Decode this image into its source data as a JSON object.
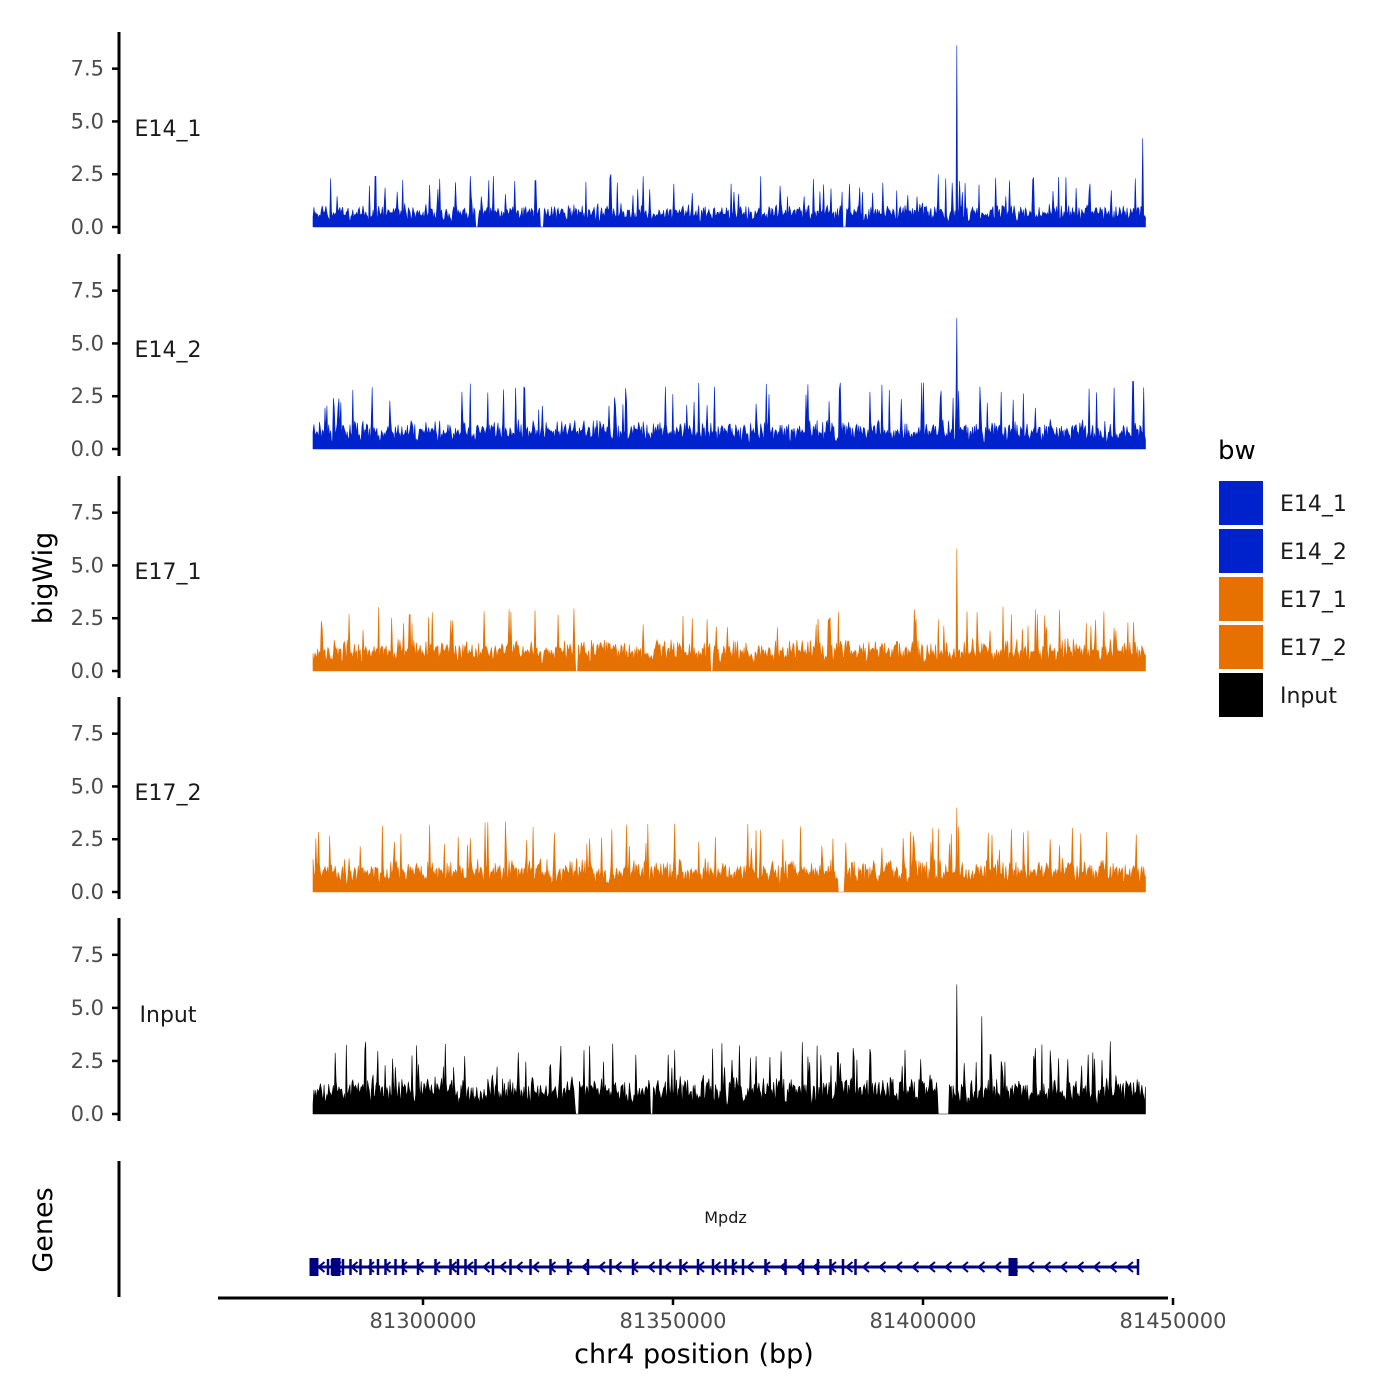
{
  "chart_data": {
    "type": "area",
    "xlabel": "chr4 position (bp)",
    "ylabel": "bigWig",
    "gene_panel_label": "Genes",
    "xlim": [
      81259000,
      81449000
    ],
    "data_xrange": [
      81278000,
      81444500
    ],
    "x_ticks": [
      81300000,
      81350000,
      81400000,
      81450000
    ],
    "x_tick_labels": [
      "81300000",
      "81350000",
      "81400000",
      "81450000"
    ],
    "ylim": [
      0,
      9
    ],
    "y_ticks": [
      0,
      2.5,
      5,
      7.5
    ],
    "y_tick_labels": [
      "0.0",
      "2.5",
      "5.0",
      "7.5"
    ],
    "legend": {
      "title": "bw",
      "entries": [
        {
          "label": "E14_1",
          "color": "#0022cc"
        },
        {
          "label": "E14_2",
          "color": "#0022cc"
        },
        {
          "label": "E17_1",
          "color": "#e67000"
        },
        {
          "label": "E17_2",
          "color": "#e67000"
        },
        {
          "label": "Input",
          "color": "#000000"
        }
      ]
    },
    "series": [
      {
        "name": "E14_1",
        "color": "#0022cc",
        "base": 0.55,
        "noise": 1.1,
        "seed": 11,
        "peaks": [
          [
            81406800,
            8.6
          ],
          [
            81444000,
            4.2
          ],
          [
            81281500,
            2.3
          ],
          [
            81290500,
            2.4
          ],
          [
            81322500,
            2.2
          ],
          [
            81337500,
            2.5
          ],
          [
            81403000,
            2.5
          ],
          [
            81442500,
            2.3
          ]
        ],
        "gaps": [
          [
            81323500,
            81324100
          ],
          [
            81310500,
            81311000
          ],
          [
            81384000,
            81384600
          ]
        ]
      },
      {
        "name": "E14_2",
        "color": "#0022cc",
        "base": 0.65,
        "noise": 1.5,
        "seed": 23,
        "peaks": [
          [
            81406800,
            6.2
          ],
          [
            81286000,
            2.8
          ],
          [
            81309500,
            3.1
          ],
          [
            81318500,
            2.9
          ],
          [
            81442000,
            3.2
          ],
          [
            81350000,
            2.6
          ],
          [
            81403500,
            2.4
          ]
        ],
        "gaps": []
      },
      {
        "name": "E17_1",
        "color": "#e67000",
        "base": 0.85,
        "noise": 1.3,
        "seed": 37,
        "peaks": [
          [
            81406800,
            5.8
          ],
          [
            81305500,
            2.4
          ],
          [
            81352000,
            2.6
          ],
          [
            81344000,
            2.2
          ],
          [
            81441000,
            2.3
          ]
        ],
        "gaps": [
          [
            81330500,
            81331000
          ],
          [
            81357500,
            81358000
          ]
        ]
      },
      {
        "name": "E17_2",
        "color": "#e67000",
        "base": 0.8,
        "noise": 1.5,
        "seed": 41,
        "peaks": [
          [
            81406800,
            4.0
          ],
          [
            81313000,
            3.3
          ],
          [
            81403000,
            3.0
          ],
          [
            81421000,
            2.9
          ],
          [
            81372000,
            2.5
          ]
        ],
        "gaps": [
          [
            81383000,
            81384200
          ]
        ]
      },
      {
        "name": "Input",
        "color": "#000000",
        "base": 1.05,
        "noise": 1.4,
        "seed": 53,
        "peaks": [
          [
            81406800,
            6.1
          ],
          [
            81411800,
            4.6
          ],
          [
            81304500,
            3.3
          ],
          [
            81319000,
            2.9
          ],
          [
            81383000,
            2.9
          ],
          [
            81413500,
            2.8
          ],
          [
            81434000,
            2.9
          ]
        ],
        "gaps": [
          [
            81330500,
            81331200
          ],
          [
            81345500,
            81346000
          ],
          [
            81403000,
            81405200
          ]
        ]
      }
    ],
    "gene": {
      "name": "Mpdz",
      "strand": "-",
      "start": 81278000,
      "end": 81443000,
      "color": "#000080",
      "exons": [
        81278200,
        81281000,
        81281800,
        81282600,
        81284000,
        81285500,
        81287500,
        81289500,
        81291000,
        81292500,
        81294500,
        81296000,
        81299000,
        81302500,
        81305500,
        81307000,
        81308500,
        81310500,
        81314000,
        81317500,
        81321500,
        81325500,
        81329000,
        81333000,
        81337500,
        81342000,
        81347500,
        81351500,
        81355000,
        81358000,
        81360500,
        81362000,
        81364000,
        81368500,
        81372500,
        81376000,
        81379000,
        81381500,
        81384000,
        81386500,
        81418000,
        81443000
      ],
      "big_exons": [
        81278200,
        81282600,
        81418000
      ]
    }
  }
}
